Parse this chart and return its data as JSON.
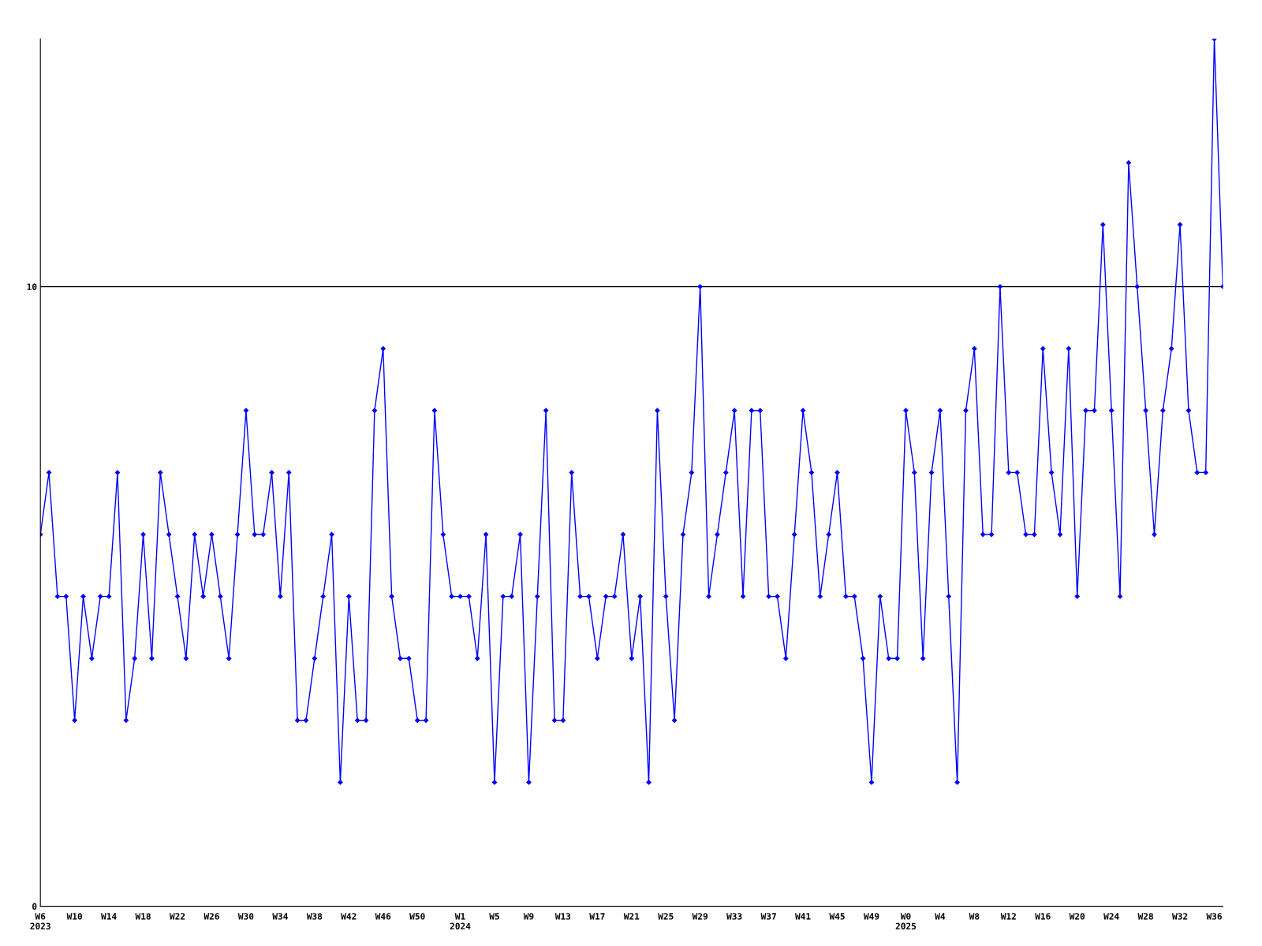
{
  "chart_data": {
    "type": "line",
    "categories": [
      "W6\n2023",
      null,
      null,
      null,
      "W10",
      null,
      null,
      null,
      "W14",
      null,
      null,
      null,
      "W18",
      null,
      null,
      null,
      "W22",
      null,
      null,
      null,
      "W26",
      null,
      null,
      null,
      "W30",
      null,
      null,
      null,
      "W34",
      null,
      null,
      null,
      "W38",
      null,
      null,
      null,
      "W42",
      null,
      null,
      null,
      "W46",
      null,
      null,
      null,
      "W50",
      null,
      null,
      null,
      null,
      "W1\n2024",
      null,
      null,
      null,
      "W5",
      null,
      null,
      null,
      "W9",
      null,
      null,
      null,
      "W13",
      null,
      null,
      null,
      "W17",
      null,
      null,
      null,
      "W21",
      null,
      null,
      null,
      "W25",
      null,
      null,
      null,
      "W29",
      null,
      null,
      null,
      "W33",
      null,
      null,
      null,
      "W37",
      null,
      null,
      null,
      "W41",
      null,
      null,
      null,
      "W45",
      null,
      null,
      null,
      "W49",
      null,
      null,
      null,
      "W0\n2025",
      null,
      null,
      null,
      "W4",
      null,
      null,
      null,
      "W8",
      null,
      null,
      null,
      "W12",
      null,
      null,
      null,
      "W16",
      null,
      null,
      null,
      "W20",
      null,
      null,
      null,
      "W24",
      null,
      null,
      null,
      "W28",
      null,
      null,
      null,
      "W32",
      null,
      null,
      null,
      "W36",
      null
    ],
    "series": [
      {
        "color": "#0000ff",
        "values": [
          6,
          7,
          5,
          5,
          3,
          5,
          4,
          5,
          5,
          7,
          3,
          4,
          6,
          4,
          7,
          6,
          5,
          4,
          6,
          5,
          6,
          5,
          4,
          6,
          8,
          6,
          6,
          7,
          5,
          7,
          3,
          3,
          4,
          5,
          6,
          2,
          5,
          3,
          3,
          8,
          9,
          5,
          4,
          4,
          3,
          3,
          8,
          6,
          5,
          5,
          5,
          4,
          6,
          2,
          5,
          5,
          6,
          2,
          5,
          8,
          3,
          3,
          7,
          5,
          5,
          4,
          5,
          5,
          6,
          4,
          5,
          2,
          8,
          5,
          3,
          6,
          7,
          10,
          5,
          6,
          7,
          8,
          5,
          8,
          8,
          5,
          5,
          4,
          6,
          8,
          7,
          5,
          6,
          7,
          5,
          5,
          4,
          2,
          5,
          4,
          4,
          8,
          7,
          4,
          7,
          8,
          5,
          2,
          8,
          9,
          6,
          6,
          10,
          7,
          7,
          6,
          6,
          9,
          7,
          6,
          9,
          5,
          8,
          8,
          11,
          8,
          5,
          12,
          10,
          8,
          6,
          8,
          9,
          11,
          8,
          7,
          7,
          14,
          10
        ]
      }
    ],
    "ylim": [
      0,
      14
    ],
    "yticks": [
      0,
      10
    ],
    "grid": "y",
    "marker": "diamond",
    "line_style": "solid"
  }
}
